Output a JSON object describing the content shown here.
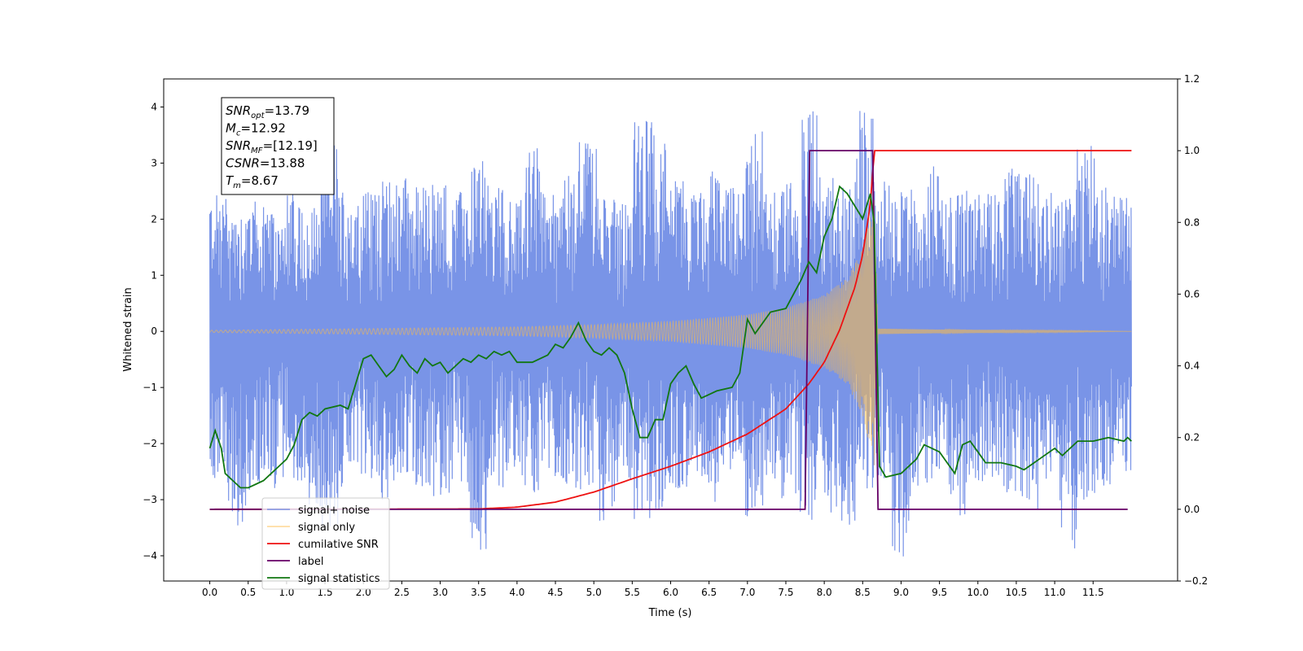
{
  "chart_data": {
    "type": "line",
    "title": "",
    "xlabel": "Time (s)",
    "ylabel": "Whitened strain",
    "xlim": [
      -0.6,
      12.6
    ],
    "ylim": [
      -4.45,
      4.5
    ],
    "y2lim": [
      -0.2,
      1.2
    ],
    "grid": false,
    "x_ticks": [
      0.0,
      0.5,
      1.0,
      1.5,
      2.0,
      2.5,
      3.0,
      3.5,
      4.0,
      4.5,
      5.0,
      5.5,
      6.0,
      6.5,
      7.0,
      7.5,
      8.0,
      8.5,
      9.0,
      9.5,
      10.0,
      10.5,
      11.0,
      11.5
    ],
    "x_tick_labels": [
      "0.0",
      "0.5",
      "1.0",
      "1.5",
      "2.0",
      "2.5",
      "3.0",
      "3.5",
      "4.0",
      "4.5",
      "5.0",
      "5.5",
      "6.0",
      "6.5",
      "7.0",
      "7.5",
      "8.0",
      "8.5",
      "9.0",
      "9.5",
      "10.0",
      "10.5",
      "11.0",
      "11.5"
    ],
    "y_ticks": [
      -4,
      -3,
      -2,
      -1,
      0,
      1,
      2,
      3,
      4
    ],
    "y_tick_labels": [
      "−4",
      "−3",
      "−2",
      "−1",
      "0",
      "1",
      "2",
      "3",
      "4"
    ],
    "y2_ticks": [
      -0.2,
      0.0,
      0.2,
      0.4,
      0.6,
      0.8,
      1.0,
      1.2
    ],
    "y2_tick_labels": [
      "−0.2",
      "0.0",
      "0.2",
      "0.4",
      "0.6",
      "0.8",
      "1.0",
      "1.2"
    ],
    "legend_position": "lower-left",
    "series": [
      {
        "name": "signal+ noise",
        "axis": "left",
        "color": "#6a88e4",
        "x_range": [
          0.0,
          12.0
        ],
        "envelope_max": [
          2.45,
          2.2,
          2.4,
          2.1,
          2.5,
          2.3,
          3.4,
          2.6,
          2.5,
          2.7,
          2.8,
          2.6,
          2.7,
          2.5,
          3.1,
          2.6,
          2.4,
          3.3,
          2.5,
          2.8,
          3.5,
          2.6,
          2.4,
          3.8,
          3.6,
          2.7,
          2.5,
          2.9,
          2.6,
          3.6,
          2.5,
          2.7,
          4.1,
          2.8,
          2.6,
          4.0,
          2.7,
          2.5,
          2.6,
          3.0,
          2.5,
          2.6,
          2.6,
          2.9,
          2.8,
          2.5,
          2.4,
          3.4,
          2.6,
          2.5
        ],
        "envelope_min": [
          -2.7,
          -3.5,
          -2.9,
          -2.8,
          -2.7,
          -3.2,
          -3.6,
          -2.8,
          -2.7,
          -3.0,
          -2.6,
          -2.8,
          -3.0,
          -2.7,
          -3.9,
          -2.8,
          -2.6,
          -2.9,
          -2.6,
          -2.8,
          -3.0,
          -3.4,
          -2.7,
          -3.5,
          -3.2,
          -2.8,
          -2.6,
          -3.1,
          -2.5,
          -3.8,
          -2.7,
          -3.0,
          -3.4,
          -3.3,
          -3.5,
          -2.8,
          -2.7,
          -4.05,
          -2.8,
          -2.7,
          -3.3,
          -2.7,
          -2.6,
          -3.0,
          -3.4,
          -2.7,
          -3.9,
          -3.0,
          -2.8,
          -2.5
        ]
      },
      {
        "name": "signal only",
        "axis": "left",
        "color": "#ffbb44",
        "x_range": [
          0.0,
          12.0
        ],
        "merger_time": 8.67,
        "amplitude_at": [
          [
            0.0,
            0.02
          ],
          [
            4.0,
            0.08
          ],
          [
            5.0,
            0.12
          ],
          [
            6.0,
            0.18
          ],
          [
            7.0,
            0.3
          ],
          [
            7.5,
            0.42
          ],
          [
            8.0,
            0.65
          ],
          [
            8.3,
            0.95
          ],
          [
            8.5,
            1.5
          ],
          [
            8.6,
            2.1
          ],
          [
            8.65,
            2.4
          ],
          [
            8.7,
            0.05
          ],
          [
            12.0,
            0.0
          ]
        ]
      },
      {
        "name": "cumilative SNR",
        "axis": "right",
        "color": "#ee1111",
        "points": [
          [
            0.0,
            0.0
          ],
          [
            3.5,
            0.001
          ],
          [
            4.0,
            0.006
          ],
          [
            4.5,
            0.02
          ],
          [
            5.0,
            0.048
          ],
          [
            5.5,
            0.085
          ],
          [
            6.0,
            0.12
          ],
          [
            6.5,
            0.16
          ],
          [
            7.0,
            0.21
          ],
          [
            7.5,
            0.28
          ],
          [
            7.8,
            0.35
          ],
          [
            8.0,
            0.41
          ],
          [
            8.2,
            0.5
          ],
          [
            8.4,
            0.62
          ],
          [
            8.5,
            0.71
          ],
          [
            8.6,
            0.85
          ],
          [
            8.65,
            1.0
          ],
          [
            12.0,
            1.0
          ]
        ]
      },
      {
        "name": "label",
        "axis": "right",
        "color": "#660066",
        "points": [
          [
            0.0,
            0.0
          ],
          [
            7.75,
            0.0
          ],
          [
            7.81,
            1.0
          ],
          [
            8.63,
            1.0
          ],
          [
            8.7,
            0.0
          ],
          [
            11.95,
            0.0
          ]
        ]
      },
      {
        "name": "signal statistics",
        "axis": "right",
        "color": "#117711",
        "points": [
          [
            0.0,
            0.17
          ],
          [
            0.07,
            0.22
          ],
          [
            0.15,
            0.17
          ],
          [
            0.2,
            0.1
          ],
          [
            0.3,
            0.08
          ],
          [
            0.4,
            0.06
          ],
          [
            0.5,
            0.06
          ],
          [
            0.6,
            0.07
          ],
          [
            0.7,
            0.08
          ],
          [
            0.8,
            0.1
          ],
          [
            0.9,
            0.12
          ],
          [
            1.0,
            0.14
          ],
          [
            1.1,
            0.18
          ],
          [
            1.2,
            0.25
          ],
          [
            1.3,
            0.27
          ],
          [
            1.4,
            0.26
          ],
          [
            1.5,
            0.28
          ],
          [
            1.7,
            0.29
          ],
          [
            1.8,
            0.28
          ],
          [
            1.9,
            0.35
          ],
          [
            2.0,
            0.42
          ],
          [
            2.1,
            0.43
          ],
          [
            2.2,
            0.4
          ],
          [
            2.3,
            0.37
          ],
          [
            2.4,
            0.39
          ],
          [
            2.5,
            0.43
          ],
          [
            2.6,
            0.4
          ],
          [
            2.7,
            0.38
          ],
          [
            2.8,
            0.42
          ],
          [
            2.9,
            0.4
          ],
          [
            3.0,
            0.41
          ],
          [
            3.1,
            0.38
          ],
          [
            3.2,
            0.4
          ],
          [
            3.3,
            0.42
          ],
          [
            3.4,
            0.41
          ],
          [
            3.5,
            0.43
          ],
          [
            3.6,
            0.42
          ],
          [
            3.7,
            0.44
          ],
          [
            3.8,
            0.43
          ],
          [
            3.9,
            0.44
          ],
          [
            4.0,
            0.41
          ],
          [
            4.2,
            0.41
          ],
          [
            4.4,
            0.43
          ],
          [
            4.5,
            0.46
          ],
          [
            4.6,
            0.45
          ],
          [
            4.7,
            0.48
          ],
          [
            4.8,
            0.52
          ],
          [
            4.9,
            0.47
          ],
          [
            5.0,
            0.44
          ],
          [
            5.1,
            0.43
          ],
          [
            5.2,
            0.45
          ],
          [
            5.3,
            0.43
          ],
          [
            5.4,
            0.38
          ],
          [
            5.5,
            0.28
          ],
          [
            5.6,
            0.2
          ],
          [
            5.7,
            0.2
          ],
          [
            5.8,
            0.25
          ],
          [
            5.9,
            0.25
          ],
          [
            6.0,
            0.35
          ],
          [
            6.1,
            0.38
          ],
          [
            6.2,
            0.4
          ],
          [
            6.3,
            0.35
          ],
          [
            6.4,
            0.31
          ],
          [
            6.5,
            0.32
          ],
          [
            6.6,
            0.33
          ],
          [
            6.8,
            0.34
          ],
          [
            6.9,
            0.38
          ],
          [
            7.0,
            0.53
          ],
          [
            7.1,
            0.49
          ],
          [
            7.2,
            0.52
          ],
          [
            7.3,
            0.55
          ],
          [
            7.5,
            0.56
          ],
          [
            7.6,
            0.6
          ],
          [
            7.7,
            0.64
          ],
          [
            7.8,
            0.69
          ],
          [
            7.9,
            0.66
          ],
          [
            8.0,
            0.76
          ],
          [
            8.1,
            0.81
          ],
          [
            8.2,
            0.9
          ],
          [
            8.3,
            0.88
          ],
          [
            8.5,
            0.81
          ],
          [
            8.6,
            0.88
          ],
          [
            8.65,
            0.8
          ],
          [
            8.72,
            0.12
          ],
          [
            8.8,
            0.09
          ],
          [
            9.0,
            0.1
          ],
          [
            9.2,
            0.14
          ],
          [
            9.3,
            0.18
          ],
          [
            9.5,
            0.16
          ],
          [
            9.6,
            0.13
          ],
          [
            9.7,
            0.1
          ],
          [
            9.8,
            0.18
          ],
          [
            9.9,
            0.19
          ],
          [
            10.0,
            0.16
          ],
          [
            10.1,
            0.13
          ],
          [
            10.3,
            0.13
          ],
          [
            10.5,
            0.12
          ],
          [
            10.6,
            0.11
          ],
          [
            10.8,
            0.14
          ],
          [
            11.0,
            0.17
          ],
          [
            11.1,
            0.15
          ],
          [
            11.3,
            0.19
          ],
          [
            11.5,
            0.19
          ],
          [
            11.7,
            0.2
          ],
          [
            11.9,
            0.19
          ],
          [
            11.95,
            0.2
          ],
          [
            12.0,
            0.19
          ]
        ]
      }
    ],
    "annotation_lines": [
      {
        "var": "SNR",
        "sub": "opt",
        "rest": "=13.79"
      },
      {
        "var": "M",
        "sub": "c",
        "rest": "=12.92"
      },
      {
        "var": "SNR",
        "sub": "MF",
        "rest": "=[12.19]"
      },
      {
        "var": "CSNR",
        "sub": "",
        "rest": "=13.88"
      },
      {
        "var": "T",
        "sub": "m",
        "rest": "=8.67"
      }
    ]
  }
}
